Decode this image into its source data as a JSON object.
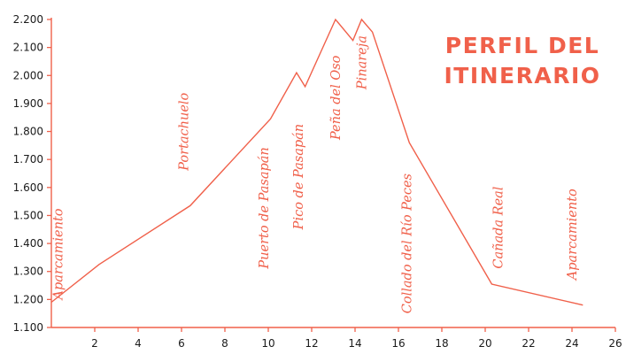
{
  "chart_data": {
    "type": "line",
    "title_lines": [
      "PERFIL DEL",
      "ITINERARIO"
    ],
    "color": "#f0604a",
    "xlabel": "",
    "ylabel": "",
    "xlim": [
      0,
      26
    ],
    "ylim": [
      1100,
      2200
    ],
    "x_ticks": [
      2,
      4,
      6,
      8,
      10,
      12,
      14,
      16,
      18,
      20,
      22,
      24,
      26
    ],
    "x_tick_labels": [
      "2",
      "4",
      "6",
      "8",
      "10",
      "12",
      "14",
      "16",
      "18",
      "20",
      "22",
      "24",
      "26"
    ],
    "y_ticks": [
      1100,
      1200,
      1300,
      1400,
      1500,
      1600,
      1700,
      1800,
      1900,
      2000,
      2100,
      2200
    ],
    "y_tick_labels": [
      "1.100",
      "1.200",
      "1.300",
      "1.400",
      "1.500",
      "1.600",
      "1.700",
      "1.800",
      "1.900",
      "2.000",
      "2.100",
      "2.200"
    ],
    "series": [
      {
        "x": [
          0,
          2.2,
          6.4,
          10.1,
          11.3,
          11.7,
          13.1,
          13.9,
          14.3,
          14.8,
          16.5,
          20.3,
          24.5
        ],
        "y": [
          1190,
          1325,
          1535,
          1845,
          2010,
          1960,
          2200,
          2125,
          2200,
          2155,
          1760,
          1255,
          1180
        ]
      }
    ],
    "annotations": [
      {
        "text": "Aparcamiento",
        "x": 0.5,
        "y": 1200
      },
      {
        "text": "Portachuelo",
        "x": 6.3,
        "y": 1660
      },
      {
        "text": "Puerto de Pasapán",
        "x": 10.0,
        "y": 1310
      },
      {
        "text": "Pico de Pasapán",
        "x": 11.6,
        "y": 1450
      },
      {
        "text": "Peña del Oso",
        "x": 13.3,
        "y": 1770
      },
      {
        "text": "Pinareja",
        "x": 14.5,
        "y": 1950
      },
      {
        "text": "Collado del Río Peces",
        "x": 16.6,
        "y": 1150
      },
      {
        "text": "Cañada Real",
        "x": 20.8,
        "y": 1310
      },
      {
        "text": "Aparcamiento",
        "x": 24.2,
        "y": 1270
      }
    ]
  }
}
